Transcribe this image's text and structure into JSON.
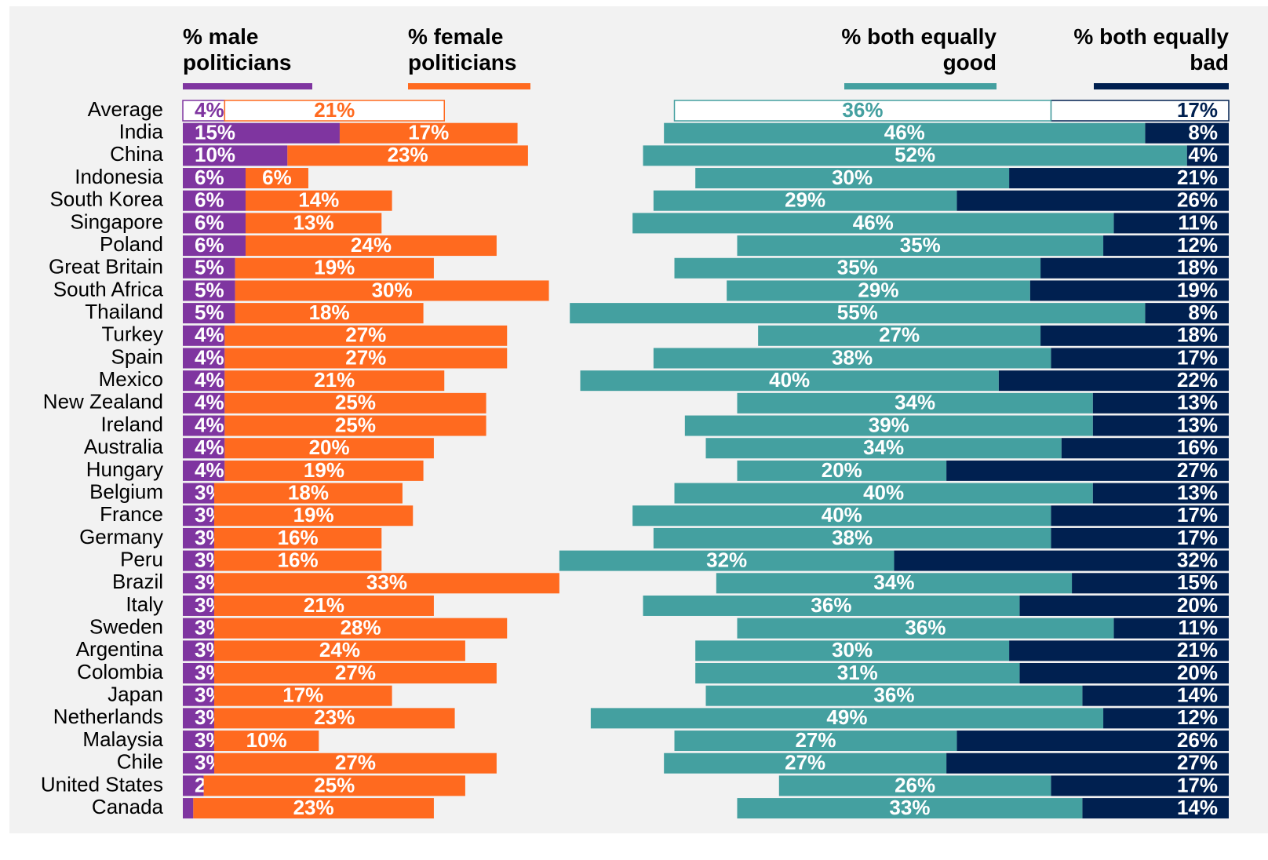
{
  "chart_data": {
    "type": "bar",
    "categories": [
      "Average",
      "India",
      "China",
      "Indonesia",
      "South Korea",
      "Singapore",
      "Poland",
      "Great Britain",
      "South Africa",
      "Thailand",
      "Turkey",
      "Spain",
      "Mexico",
      "New Zealand",
      "Ireland",
      "Australia",
      "Hungary",
      "Belgium",
      "France",
      "Germany",
      "Peru",
      "Brazil",
      "Italy",
      "Sweden",
      "Argentina",
      "Colombia",
      "Japan",
      "Netherlands",
      "Malaysia",
      "Chile",
      "United States",
      "Canada"
    ],
    "series": [
      {
        "name": "% male politicians",
        "color": "#7f35a0",
        "values": [
          4,
          15,
          10,
          6,
          6,
          6,
          6,
          5,
          5,
          5,
          4,
          4,
          4,
          4,
          4,
          4,
          4,
          3,
          3,
          3,
          3,
          3,
          3,
          3,
          3,
          3,
          3,
          3,
          3,
          3,
          2,
          1
        ],
        "value_labels": [
          "4%",
          "15%",
          "10%",
          "6%",
          "6%",
          "6%",
          "6%",
          "5%",
          "5%",
          "5%",
          "4%",
          "4%",
          "4%",
          "4%",
          "4%",
          "4%",
          "4%",
          "3%",
          "3%",
          "3%",
          "3%",
          "3%",
          "3%",
          "3%",
          "3%",
          "3%",
          "3%",
          "3%",
          "3%",
          "3%",
          "2%",
          "1%"
        ]
      },
      {
        "name": "% female politicians",
        "color": "#ff6a1f",
        "values": [
          21,
          17,
          23,
          6,
          14,
          13,
          24,
          19,
          30,
          18,
          27,
          27,
          21,
          25,
          25,
          20,
          19,
          18,
          19,
          16,
          16,
          33,
          21,
          28,
          24,
          27,
          17,
          23,
          10,
          27,
          25,
          23
        ],
        "value_labels": [
          "21%",
          "17%",
          "23%",
          "6%",
          "14%",
          "13%",
          "24%",
          "19%",
          "30%",
          "18%",
          "27%",
          "27%",
          "21%",
          "25%",
          "25%",
          "20%",
          "19%",
          "18%",
          "19%",
          "16%",
          "16%",
          "33%",
          "21%",
          "28%",
          "24%",
          "27%",
          "17%",
          "23%",
          "10%",
          "27%",
          "25%",
          "23%"
        ]
      },
      {
        "name": "% both equally good",
        "color": "#44a0a0",
        "values": [
          36,
          46,
          52,
          30,
          29,
          46,
          35,
          35,
          29,
          55,
          27,
          38,
          40,
          34,
          39,
          34,
          20,
          40,
          40,
          38,
          32,
          34,
          36,
          36,
          30,
          31,
          36,
          49,
          27,
          27,
          26,
          33
        ],
        "value_labels": [
          "36%",
          "46%",
          "52%",
          "30%",
          "29%",
          "46%",
          "35%",
          "35%",
          "29%",
          "55%",
          "27%",
          "38%",
          "40%",
          "34%",
          "39%",
          "34%",
          "20%",
          "40%",
          "40%",
          "38%",
          "32%",
          "34%",
          "36%",
          "36%",
          "30%",
          "31%",
          "36%",
          "49%",
          "27%",
          "27%",
          "26%",
          "33%"
        ]
      },
      {
        "name": "% both equally bad",
        "color": "#002050",
        "values": [
          17,
          8,
          4,
          21,
          26,
          11,
          12,
          18,
          19,
          8,
          18,
          17,
          22,
          13,
          13,
          16,
          27,
          13,
          17,
          17,
          32,
          15,
          20,
          11,
          21,
          20,
          14,
          12,
          26,
          27,
          17,
          14
        ],
        "value_labels": [
          "17%",
          "8%",
          "4%",
          "21%",
          "26%",
          "11%",
          "12%",
          "18%",
          "19%",
          "8%",
          "18%",
          "17%",
          "22%",
          "13%",
          "13%",
          "16%",
          "27%",
          "13%",
          "17%",
          "17%",
          "32%",
          "15%",
          "20%",
          "11%",
          "21%",
          "20%",
          "14%",
          "12%",
          "26%",
          "27%",
          "17%",
          "14%"
        ]
      }
    ]
  }
}
